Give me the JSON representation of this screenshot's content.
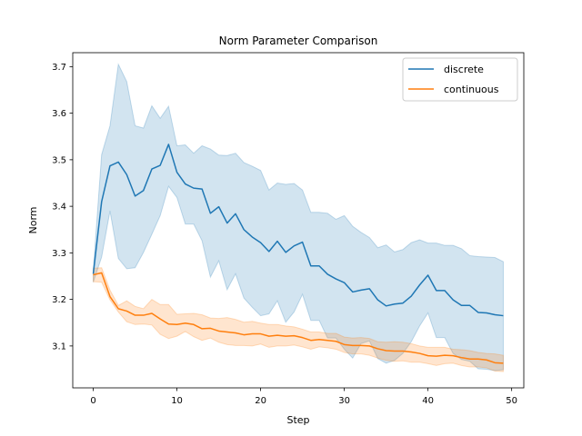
{
  "chart_data": {
    "type": "line",
    "title": "Norm Parameter Comparison",
    "xlabel": "Step",
    "ylabel": "Norm",
    "xlim": [
      -2.45,
      51.45
    ],
    "ylim": [
      3.01,
      3.73
    ],
    "xticks": [
      0,
      10,
      20,
      30,
      40,
      50
    ],
    "yticks": [
      3.1,
      3.2,
      3.3,
      3.4,
      3.5,
      3.6,
      3.7
    ],
    "ytick_labels": [
      "3.1",
      "3.2",
      "3.3",
      "3.4",
      "3.5",
      "3.6",
      "3.7"
    ],
    "grid": false,
    "legend_position": "top-right",
    "series": [
      {
        "name": "discrete",
        "color": "#1f77b4",
        "x": [
          0,
          1,
          2,
          3,
          4,
          5,
          6,
          7,
          8,
          9,
          10,
          11,
          12,
          13,
          14,
          15,
          16,
          17,
          18,
          19,
          20,
          21,
          22,
          23,
          24,
          25,
          26,
          27,
          28,
          29,
          30,
          31,
          32,
          33,
          34,
          35,
          36,
          37,
          38,
          39,
          40,
          41,
          42,
          43,
          44,
          45,
          46,
          47,
          48,
          49
        ],
        "mean": [
          3.255,
          3.41,
          3.487,
          3.495,
          3.468,
          3.422,
          3.434,
          3.48,
          3.488,
          3.533,
          3.473,
          3.448,
          3.439,
          3.437,
          3.385,
          3.399,
          3.364,
          3.384,
          3.35,
          3.334,
          3.322,
          3.303,
          3.325,
          3.301,
          3.315,
          3.323,
          3.272,
          3.272,
          3.254,
          3.244,
          3.236,
          3.216,
          3.22,
          3.223,
          3.199,
          3.186,
          3.19,
          3.192,
          3.207,
          3.231,
          3.252,
          3.219,
          3.219,
          3.199,
          3.187,
          3.187,
          3.172,
          3.171,
          3.167,
          3.165
        ],
        "upper": [
          3.262,
          3.511,
          3.573,
          3.705,
          3.668,
          3.573,
          3.568,
          3.616,
          3.589,
          3.615,
          3.53,
          3.532,
          3.514,
          3.53,
          3.523,
          3.51,
          3.509,
          3.514,
          3.494,
          3.486,
          3.477,
          3.435,
          3.45,
          3.447,
          3.449,
          3.435,
          3.387,
          3.387,
          3.385,
          3.372,
          3.38,
          3.357,
          3.344,
          3.333,
          3.311,
          3.317,
          3.302,
          3.307,
          3.322,
          3.328,
          3.321,
          3.321,
          3.316,
          3.316,
          3.309,
          3.294,
          3.292,
          3.291,
          3.29,
          3.281
        ],
        "lower": [
          3.237,
          3.291,
          3.39,
          3.288,
          3.266,
          3.268,
          3.301,
          3.34,
          3.38,
          3.443,
          3.419,
          3.362,
          3.362,
          3.326,
          3.248,
          3.283,
          3.221,
          3.255,
          3.203,
          3.183,
          3.165,
          3.169,
          3.197,
          3.151,
          3.173,
          3.211,
          3.155,
          3.155,
          3.117,
          3.117,
          3.093,
          3.074,
          3.105,
          3.111,
          3.073,
          3.063,
          3.069,
          3.084,
          3.109,
          3.143,
          3.171,
          3.118,
          3.118,
          3.084,
          3.071,
          3.067,
          3.051,
          3.05,
          3.047,
          3.049
        ]
      },
      {
        "name": "continuous",
        "color": "#ff7f0e",
        "x": [
          0,
          1,
          2,
          3,
          4,
          5,
          6,
          7,
          8,
          9,
          10,
          11,
          12,
          13,
          14,
          15,
          16,
          17,
          18,
          19,
          20,
          21,
          22,
          23,
          24,
          25,
          26,
          27,
          28,
          29,
          30,
          31,
          32,
          33,
          34,
          35,
          36,
          37,
          38,
          39,
          40,
          41,
          42,
          43,
          44,
          45,
          46,
          47,
          48,
          49
        ],
        "mean": [
          3.253,
          3.257,
          3.206,
          3.18,
          3.175,
          3.166,
          3.166,
          3.17,
          3.158,
          3.147,
          3.146,
          3.149,
          3.146,
          3.137,
          3.138,
          3.132,
          3.13,
          3.128,
          3.124,
          3.126,
          3.126,
          3.121,
          3.123,
          3.121,
          3.122,
          3.118,
          3.112,
          3.114,
          3.112,
          3.11,
          3.103,
          3.101,
          3.101,
          3.1,
          3.094,
          3.09,
          3.089,
          3.089,
          3.087,
          3.084,
          3.079,
          3.078,
          3.08,
          3.079,
          3.075,
          3.072,
          3.072,
          3.07,
          3.064,
          3.063
        ],
        "upper": [
          3.267,
          3.268,
          3.22,
          3.187,
          3.197,
          3.185,
          3.18,
          3.2,
          3.189,
          3.189,
          3.168,
          3.169,
          3.17,
          3.167,
          3.16,
          3.159,
          3.161,
          3.157,
          3.151,
          3.153,
          3.149,
          3.146,
          3.146,
          3.143,
          3.141,
          3.136,
          3.13,
          3.13,
          3.127,
          3.127,
          3.119,
          3.117,
          3.118,
          3.116,
          3.109,
          3.108,
          3.109,
          3.108,
          3.105,
          3.1,
          3.097,
          3.097,
          3.097,
          3.093,
          3.092,
          3.09,
          3.086,
          3.084,
          3.083,
          3.08
        ],
        "lower": [
          3.238,
          3.237,
          3.199,
          3.173,
          3.152,
          3.146,
          3.147,
          3.145,
          3.125,
          3.116,
          3.121,
          3.131,
          3.12,
          3.112,
          3.117,
          3.108,
          3.103,
          3.101,
          3.101,
          3.1,
          3.104,
          3.097,
          3.1,
          3.1,
          3.102,
          3.098,
          3.093,
          3.098,
          3.096,
          3.093,
          3.086,
          3.083,
          3.083,
          3.08,
          3.074,
          3.069,
          3.067,
          3.068,
          3.065,
          3.065,
          3.062,
          3.058,
          3.062,
          3.063,
          3.058,
          3.055,
          3.055,
          3.053,
          3.046,
          3.045
        ]
      }
    ]
  }
}
